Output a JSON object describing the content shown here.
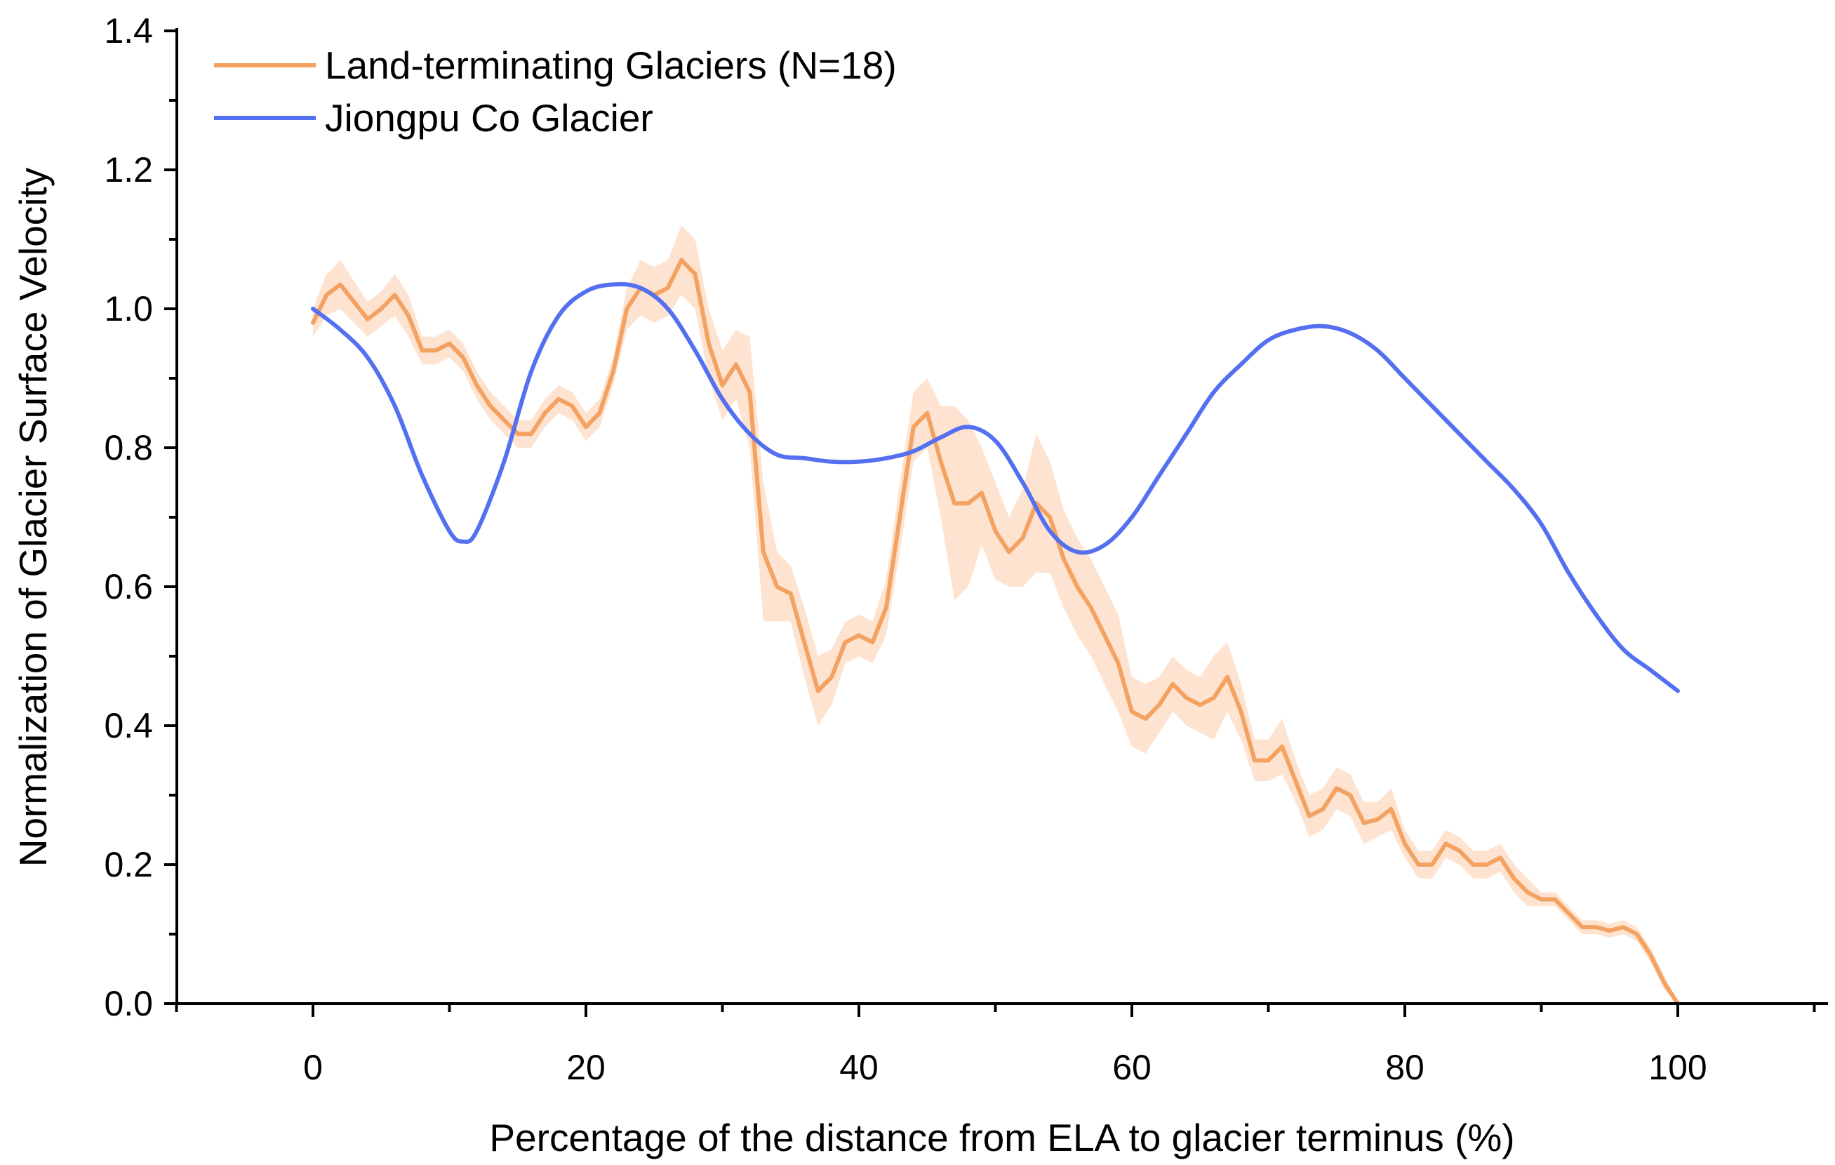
{
  "chart_data": {
    "type": "line",
    "title": "",
    "xlabel": "Percentage of the distance from ELA to glacier terminus (%)",
    "ylabel": "Normalization of Glacier Surface Velocity",
    "xlim": [
      -10,
      110
    ],
    "ylim": [
      0,
      1.4
    ],
    "xticks": [
      0,
      20,
      40,
      60,
      80,
      100
    ],
    "yticks": [
      0.0,
      0.2,
      0.4,
      0.6,
      0.8,
      1.0,
      1.2,
      1.4
    ],
    "xtick_labels": [
      "0",
      "20",
      "40",
      "60",
      "80",
      "100"
    ],
    "ytick_labels": [
      "0.0",
      "0.2",
      "0.4",
      "0.6",
      "0.8",
      "1.0",
      "1.2",
      "1.4"
    ],
    "grid": false,
    "legend_position": "top-left",
    "series": [
      {
        "name": "Land-terminating Glaciers (N=18)",
        "color": "#F4A261",
        "band_color": "#FDE3D0",
        "x": [
          0,
          1,
          2,
          3,
          4,
          5,
          6,
          7,
          8,
          9,
          10,
          11,
          12,
          13,
          14,
          15,
          16,
          17,
          18,
          19,
          20,
          21,
          22,
          23,
          24,
          25,
          26,
          27,
          28,
          29,
          30,
          31,
          32,
          33,
          34,
          35,
          36,
          37,
          38,
          39,
          40,
          41,
          42,
          43,
          44,
          45,
          46,
          47,
          48,
          49,
          50,
          51,
          52,
          53,
          54,
          55,
          56,
          57,
          58,
          59,
          60,
          61,
          62,
          63,
          64,
          65,
          66,
          67,
          68,
          69,
          70,
          71,
          72,
          73,
          74,
          75,
          76,
          77,
          78,
          79,
          80,
          81,
          82,
          83,
          84,
          85,
          86,
          87,
          88,
          89,
          90,
          91,
          92,
          93,
          94,
          95,
          96,
          97,
          98,
          99,
          100
        ],
        "y": [
          0.98,
          1.02,
          1.035,
          1.01,
          0.985,
          1.0,
          1.02,
          0.99,
          0.94,
          0.94,
          0.95,
          0.93,
          0.89,
          0.86,
          0.84,
          0.82,
          0.82,
          0.85,
          0.87,
          0.86,
          0.83,
          0.85,
          0.91,
          1.0,
          1.03,
          1.02,
          1.03,
          1.07,
          1.05,
          0.95,
          0.89,
          0.92,
          0.88,
          0.65,
          0.6,
          0.59,
          0.52,
          0.45,
          0.47,
          0.52,
          0.53,
          0.52,
          0.57,
          0.7,
          0.83,
          0.85,
          0.78,
          0.72,
          0.72,
          0.735,
          0.68,
          0.65,
          0.67,
          0.72,
          0.7,
          0.64,
          0.6,
          0.57,
          0.53,
          0.49,
          0.42,
          0.41,
          0.43,
          0.46,
          0.44,
          0.43,
          0.44,
          0.47,
          0.42,
          0.35,
          0.35,
          0.37,
          0.32,
          0.27,
          0.28,
          0.31,
          0.3,
          0.26,
          0.265,
          0.28,
          0.23,
          0.2,
          0.2,
          0.23,
          0.22,
          0.2,
          0.2,
          0.21,
          0.18,
          0.16,
          0.15,
          0.15,
          0.13,
          0.11,
          0.11,
          0.105,
          0.11,
          0.1,
          0.07,
          0.03,
          0.0
        ],
        "lower": [
          0.96,
          0.99,
          1.0,
          0.98,
          0.96,
          0.975,
          0.99,
          0.96,
          0.92,
          0.92,
          0.93,
          0.91,
          0.87,
          0.84,
          0.82,
          0.8,
          0.8,
          0.83,
          0.85,
          0.84,
          0.81,
          0.83,
          0.89,
          0.97,
          0.99,
          0.98,
          0.99,
          1.02,
          1.0,
          0.9,
          0.84,
          0.87,
          0.8,
          0.55,
          0.55,
          0.55,
          0.47,
          0.4,
          0.43,
          0.49,
          0.5,
          0.49,
          0.53,
          0.65,
          0.78,
          0.8,
          0.7,
          0.58,
          0.6,
          0.66,
          0.61,
          0.6,
          0.6,
          0.62,
          0.62,
          0.57,
          0.53,
          0.5,
          0.46,
          0.42,
          0.37,
          0.36,
          0.39,
          0.42,
          0.4,
          0.39,
          0.38,
          0.42,
          0.38,
          0.32,
          0.32,
          0.33,
          0.29,
          0.24,
          0.25,
          0.28,
          0.27,
          0.23,
          0.24,
          0.25,
          0.21,
          0.18,
          0.18,
          0.21,
          0.2,
          0.18,
          0.18,
          0.19,
          0.16,
          0.14,
          0.14,
          0.14,
          0.12,
          0.1,
          0.1,
          0.095,
          0.1,
          0.09,
          0.06,
          0.02,
          0.0
        ],
        "upper": [
          1.0,
          1.05,
          1.07,
          1.04,
          1.01,
          1.025,
          1.05,
          1.02,
          0.96,
          0.96,
          0.97,
          0.95,
          0.91,
          0.88,
          0.86,
          0.84,
          0.84,
          0.87,
          0.89,
          0.88,
          0.85,
          0.87,
          0.93,
          1.03,
          1.07,
          1.06,
          1.07,
          1.12,
          1.1,
          1.0,
          0.94,
          0.97,
          0.96,
          0.75,
          0.65,
          0.63,
          0.57,
          0.5,
          0.51,
          0.55,
          0.56,
          0.55,
          0.61,
          0.75,
          0.88,
          0.9,
          0.86,
          0.86,
          0.84,
          0.8,
          0.75,
          0.7,
          0.74,
          0.82,
          0.78,
          0.71,
          0.67,
          0.64,
          0.6,
          0.56,
          0.47,
          0.46,
          0.47,
          0.5,
          0.48,
          0.47,
          0.5,
          0.52,
          0.46,
          0.38,
          0.38,
          0.41,
          0.35,
          0.3,
          0.31,
          0.34,
          0.33,
          0.29,
          0.29,
          0.31,
          0.25,
          0.22,
          0.22,
          0.25,
          0.24,
          0.22,
          0.22,
          0.23,
          0.2,
          0.18,
          0.16,
          0.16,
          0.14,
          0.12,
          0.12,
          0.115,
          0.12,
          0.11,
          0.08,
          0.04,
          0.0
        ]
      },
      {
        "name": "Jiongpu Co Glacier",
        "color": "#5470F0",
        "x": [
          0,
          2,
          4,
          6,
          8,
          10,
          11,
          12,
          14,
          16,
          18,
          20,
          22,
          24,
          26,
          28,
          30,
          32,
          34,
          36,
          38,
          40,
          42,
          44,
          46,
          48,
          50,
          52,
          54,
          56,
          58,
          60,
          62,
          64,
          66,
          68,
          70,
          72,
          74,
          76,
          78,
          80,
          82,
          84,
          86,
          88,
          90,
          92,
          94,
          96,
          98,
          100
        ],
        "y": [
          1.0,
          0.97,
          0.93,
          0.86,
          0.76,
          0.68,
          0.665,
          0.68,
          0.78,
          0.91,
          0.99,
          1.025,
          1.035,
          1.03,
          1.0,
          0.94,
          0.87,
          0.82,
          0.79,
          0.785,
          0.78,
          0.78,
          0.785,
          0.795,
          0.815,
          0.83,
          0.81,
          0.75,
          0.68,
          0.65,
          0.66,
          0.7,
          0.76,
          0.82,
          0.88,
          0.92,
          0.955,
          0.97,
          0.975,
          0.965,
          0.94,
          0.9,
          0.86,
          0.82,
          0.78,
          0.74,
          0.69,
          0.62,
          0.56,
          0.51,
          0.48,
          0.45
        ]
      }
    ]
  }
}
